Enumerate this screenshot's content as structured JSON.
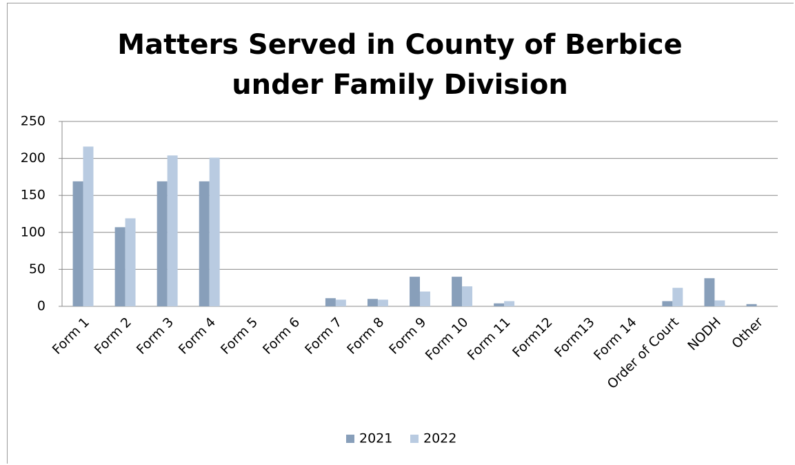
{
  "chart_data": {
    "type": "bar",
    "title": "Matters Served in County of Berbice under Family Division",
    "categories": [
      "Form 1",
      "Form 2",
      "Form 3",
      "Form 4",
      "Form 5",
      "Form 6",
      "Form 7",
      "Form 8",
      "Form 9",
      "Form 10",
      "Form 11",
      "Form12",
      "Form13",
      "Form 14",
      "Order of Court",
      "NODH",
      "Other"
    ],
    "series": [
      {
        "name": "2021",
        "color": "#889fba",
        "values": [
          169,
          107,
          169,
          169,
          0,
          0,
          11,
          10,
          40,
          40,
          4,
          0,
          0,
          0,
          7,
          38,
          3
        ]
      },
      {
        "name": "2022",
        "color": "#b9cbe1",
        "values": [
          216,
          119,
          204,
          201,
          0,
          0,
          9,
          9,
          20,
          27,
          7,
          0,
          0,
          0,
          25,
          8,
          0
        ]
      }
    ],
    "ylim": [
      0,
      250
    ],
    "yticks": [
      0,
      50,
      100,
      150,
      200,
      250
    ],
    "grid": true,
    "legend": "bottom"
  }
}
